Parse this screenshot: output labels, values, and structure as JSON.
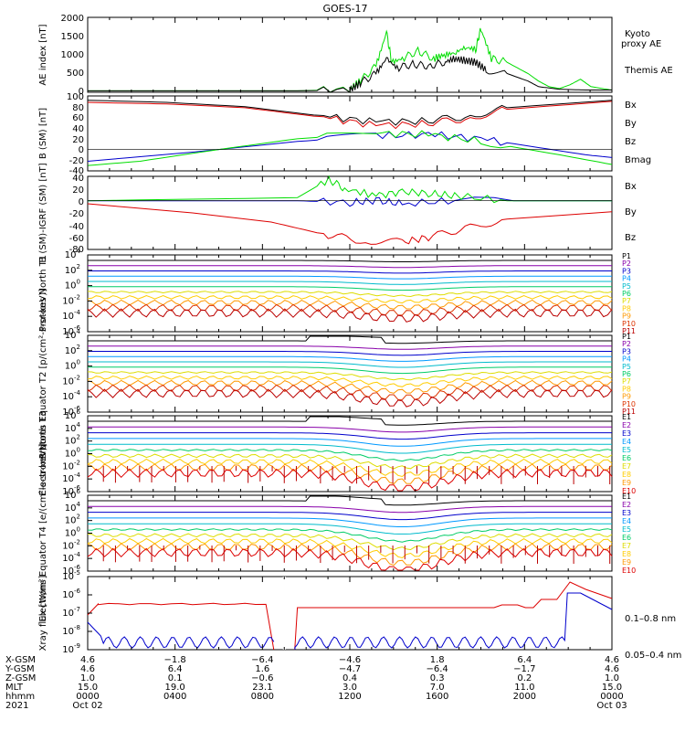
{
  "page": {
    "title": "GOES-17"
  },
  "colors": {
    "black": "#000000",
    "green": "#00dd00",
    "blue": "#0000cc",
    "red": "#dd0000",
    "purple": "#8800aa",
    "cyan": "#00bbcc",
    "yellow": "#dddd00",
    "orange": "#ff9900"
  },
  "chart_data": [
    {
      "type": "line",
      "ylabel": "AE index [nT]",
      "ylim": [
        0,
        2000
      ],
      "yticks": [
        "2000",
        "1500",
        "1000",
        "500",
        "0"
      ],
      "log": false,
      "series": [
        {
          "name": "Kyoto proxy AE",
          "color": "#00dd00",
          "values": [
            [
              0,
              40
            ],
            [
              40,
              40
            ],
            [
              50,
              80
            ],
            [
              52,
              300
            ],
            [
              55,
              700
            ],
            [
              57,
              1600
            ],
            [
              58,
              800
            ],
            [
              60,
              900
            ],
            [
              63,
              1100
            ],
            [
              66,
              900
            ],
            [
              68,
              1000
            ],
            [
              70,
              1050
            ],
            [
              72,
              1200
            ],
            [
              74,
              1150
            ],
            [
              75,
              1700
            ],
            [
              77,
              900
            ],
            [
              80,
              800
            ],
            [
              84,
              500
            ],
            [
              86,
              300
            ],
            [
              88,
              150
            ],
            [
              90,
              100
            ],
            [
              92,
              200
            ],
            [
              94,
              350
            ],
            [
              95,
              250
            ],
            [
              96,
              150
            ],
            [
              100,
              60
            ]
          ]
        },
        {
          "name": "Themis AE",
          "color": "#000000",
          "values": [
            [
              0,
              40
            ],
            [
              40,
              40
            ],
            [
              50,
              60
            ],
            [
              52,
              250
            ],
            [
              55,
              500
            ],
            [
              57,
              900
            ],
            [
              59,
              650
            ],
            [
              62,
              750
            ],
            [
              65,
              700
            ],
            [
              68,
              800
            ],
            [
              70,
              900
            ],
            [
              72,
              850
            ],
            [
              74,
              800
            ],
            [
              76,
              600
            ],
            [
              80,
              500
            ],
            [
              84,
              300
            ],
            [
              86,
              150
            ],
            [
              90,
              80
            ],
            [
              95,
              60
            ],
            [
              100,
              60
            ]
          ]
        }
      ],
      "legend": [
        "Kyoto",
        "proxy AE",
        "Themis AE"
      ]
    },
    {
      "type": "line",
      "ylabel": "B (SM) [nT]",
      "ylim": [
        -40,
        100
      ],
      "yticks": [
        "100",
        "80",
        "60",
        "40",
        "20",
        "0",
        "-20",
        "-40"
      ],
      "log": false,
      "series": [
        {
          "name": "Bx",
          "color": "#0000cc",
          "values": [
            [
              0,
              -22
            ],
            [
              20,
              -5
            ],
            [
              40,
              15
            ],
            [
              55,
              25
            ],
            [
              65,
              28
            ],
            [
              75,
              20
            ],
            [
              85,
              5
            ],
            [
              95,
              -10
            ],
            [
              100,
              -15
            ]
          ]
        },
        {
          "name": "By",
          "color": "#00dd00",
          "values": [
            [
              0,
              -30
            ],
            [
              10,
              -22
            ],
            [
              25,
              0
            ],
            [
              40,
              20
            ],
            [
              55,
              30
            ],
            [
              65,
              28
            ],
            [
              75,
              15
            ],
            [
              90,
              -10
            ],
            [
              100,
              -28
            ]
          ]
        },
        {
          "name": "Bz",
          "color": "#dd0000",
          "values": [
            [
              0,
              88
            ],
            [
              15,
              85
            ],
            [
              30,
              78
            ],
            [
              45,
              60
            ],
            [
              55,
              45
            ],
            [
              65,
              48
            ],
            [
              72,
              58
            ],
            [
              80,
              75
            ],
            [
              100,
              90
            ]
          ]
        },
        {
          "name": "Bmag",
          "color": "#000000",
          "values": [
            [
              0,
              92
            ],
            [
              15,
              88
            ],
            [
              30,
              80
            ],
            [
              45,
              62
            ],
            [
              55,
              52
            ],
            [
              65,
              53
            ],
            [
              72,
              62
            ],
            [
              80,
              78
            ],
            [
              100,
              92
            ]
          ]
        }
      ]
    },
    {
      "type": "line",
      "ylabel": "B (SM)-IGRF (SM) [nT]",
      "ylim": [
        -80,
        40
      ],
      "yticks": [
        "40",
        "20",
        "0",
        "-20",
        "-40",
        "-60",
        "-80"
      ],
      "log": false,
      "series": [
        {
          "name": "Bx",
          "color": "#0000cc",
          "values": [
            [
              0,
              0
            ],
            [
              40,
              0
            ],
            [
              50,
              -3
            ],
            [
              55,
              0
            ],
            [
              60,
              -5
            ],
            [
              70,
              0
            ],
            [
              100,
              0
            ]
          ]
        },
        {
          "name": "By",
          "color": "#00dd00",
          "values": [
            [
              0,
              0
            ],
            [
              40,
              5
            ],
            [
              46,
              35
            ],
            [
              49,
              20
            ],
            [
              55,
              8
            ],
            [
              60,
              15
            ],
            [
              65,
              12
            ],
            [
              70,
              8
            ],
            [
              80,
              0
            ],
            [
              100,
              0
            ]
          ]
        },
        {
          "name": "Bz",
          "color": "#dd0000",
          "values": [
            [
              0,
              -5
            ],
            [
              20,
              -20
            ],
            [
              35,
              -35
            ],
            [
              45,
              -55
            ],
            [
              52,
              -65
            ],
            [
              60,
              -68
            ],
            [
              65,
              -60
            ],
            [
              72,
              -45
            ],
            [
              80,
              -30
            ],
            [
              100,
              -18
            ]
          ]
        }
      ]
    },
    {
      "type": "line",
      "ylabel": "Protons North T1",
      "yticks_exp": [
        4,
        2,
        0,
        -2,
        -4,
        -6
      ],
      "log": true,
      "legend": [
        "P1",
        "P2",
        "P3",
        "P4",
        "P5",
        "P6",
        "P7",
        "P8",
        "P9",
        "P10",
        "P11"
      ]
    },
    {
      "type": "line",
      "ylabel": "Protons Equator T2 [p/(cm²-s-sr-keV)]",
      "yticks_exp": [
        4,
        2,
        0,
        -2,
        -4,
        -6
      ],
      "log": true,
      "legend": [
        "P1",
        "P2",
        "P3",
        "P4",
        "P5",
        "P6",
        "P7",
        "P8",
        "P9",
        "P10",
        "P11"
      ]
    },
    {
      "type": "line",
      "ylabel": "Electrons North T3",
      "yticks_exp": [
        6,
        4,
        2,
        0,
        -2,
        -4,
        -6
      ],
      "log": true,
      "legend": [
        "E1",
        "E2",
        "E3",
        "E4",
        "E5",
        "E6",
        "E7",
        "E8",
        "E9",
        "E10"
      ]
    },
    {
      "type": "line",
      "ylabel": "Electrons Equator T4 [e/(cm²-s-sr-keV)]",
      "yticks_exp": [
        6,
        4,
        2,
        0,
        -2,
        -4,
        -6
      ],
      "log": true,
      "legend": [
        "E1",
        "E2",
        "E3",
        "E4",
        "E5",
        "E6",
        "E7",
        "E8",
        "E9",
        "E10"
      ]
    },
    {
      "type": "line",
      "ylabel": "Xray flux [W/m²]",
      "yticks_exp": [
        -5,
        -6,
        -7,
        -8,
        -9
      ],
      "log": true,
      "legend": [
        "0.1–0.8 nm",
        "0.05–0.4 nm"
      ]
    }
  ],
  "axis": {
    "rows": [
      {
        "label": "X-GSM",
        "values": [
          "4.6",
          "−1.8",
          "−6.4",
          "−4.6",
          "1.8",
          "6.4",
          "4.6"
        ]
      },
      {
        "label": "Y-GSM",
        "values": [
          "4.6",
          "6.4",
          "1.6",
          "−4.7",
          "−6.4",
          "−1.7",
          "4.6"
        ]
      },
      {
        "label": "Z-GSM",
        "values": [
          "1.0",
          "0.1",
          "−0.6",
          "0.4",
          "0.3",
          "0.2",
          "1.0"
        ]
      },
      {
        "label": "MLT",
        "values": [
          "15.0",
          "19.0",
          "23.1",
          "3.0",
          "7.0",
          "11.0",
          "15.0"
        ]
      },
      {
        "label": "hhmm",
        "values": [
          "0000",
          "0400",
          "0800",
          "1200",
          "1600",
          "2000",
          "0000"
        ]
      },
      {
        "label": "2021",
        "values": [
          "Oct 02",
          "",
          "",
          "",
          "",
          "",
          "Oct 03"
        ]
      }
    ]
  }
}
